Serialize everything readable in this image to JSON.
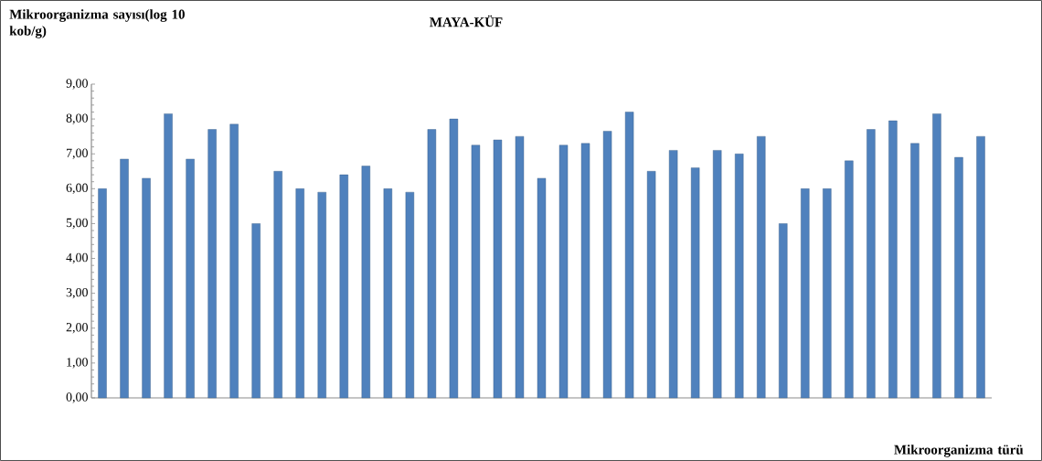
{
  "chart_data": {
    "type": "bar",
    "title": "MAYA-KÜF",
    "ylabel": "Mikroorganizma sayısı(log 10 kob/g)",
    "xlabel": "Mikroorganizma türü",
    "categories": [
      null,
      null,
      null,
      null,
      null,
      null,
      null,
      null,
      null,
      null,
      null,
      null,
      null,
      null,
      null,
      null,
      null,
      null,
      null,
      null,
      null,
      null,
      null,
      null,
      null,
      null,
      null,
      null,
      null,
      null,
      null,
      null,
      null,
      null,
      null,
      null,
      null,
      null,
      null,
      null,
      null
    ],
    "values": [
      6.0,
      6.85,
      6.3,
      8.15,
      6.85,
      7.7,
      7.85,
      5.0,
      6.5,
      6.0,
      5.9,
      6.4,
      6.65,
      6.0,
      5.9,
      7.7,
      8.0,
      7.25,
      7.4,
      7.5,
      6.3,
      7.25,
      7.3,
      7.65,
      8.2,
      6.5,
      7.1,
      6.6,
      7.1,
      7.0,
      7.5,
      5.0,
      6.0,
      6.0,
      6.8,
      7.7,
      7.95,
      7.3,
      8.15,
      6.9,
      7.5
    ],
    "color": "#4f81bd",
    "ylim": [
      0,
      9
    ],
    "yticks": [
      {
        "value": 0,
        "label": "0,00"
      },
      {
        "value": 1,
        "label": "1,00"
      },
      {
        "value": 2,
        "label": "2,00"
      },
      {
        "value": 3,
        "label": "3,00"
      },
      {
        "value": 4,
        "label": "4,00"
      },
      {
        "value": 5,
        "label": "5,00"
      },
      {
        "value": 6,
        "label": "6,00"
      },
      {
        "value": 7,
        "label": "7,00"
      },
      {
        "value": 8,
        "label": "8,00"
      },
      {
        "value": 9,
        "label": "9,00"
      }
    ]
  }
}
